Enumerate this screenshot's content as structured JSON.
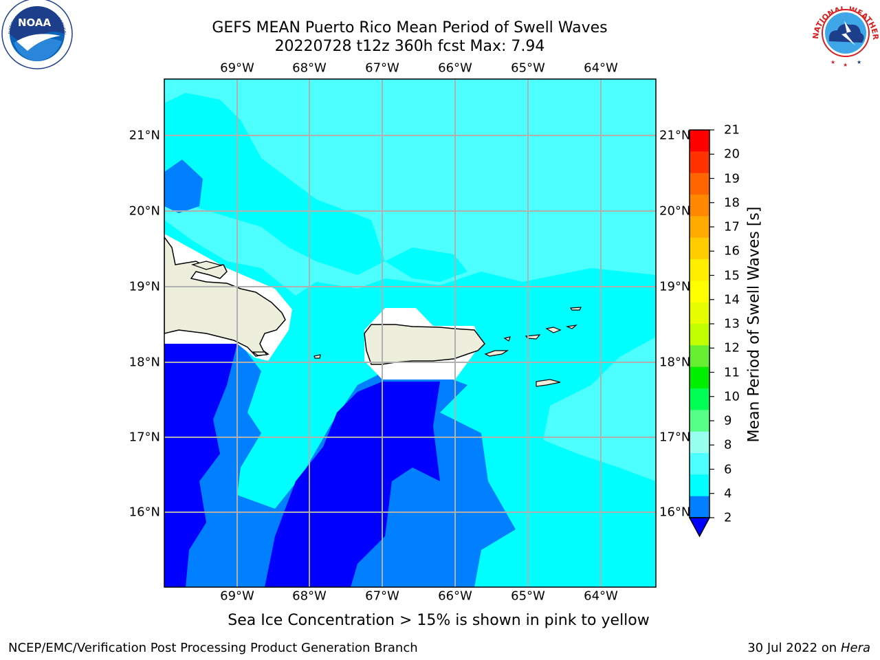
{
  "header": {
    "title_line1": "GEFS MEAN Puerto Rico Mean Period of Swell Waves",
    "title_line2": "20220728 t12z 360h fcst   Max: 7.94"
  },
  "logos": {
    "left": {
      "name": "NOAA",
      "ring_text": "NATIONAL OCEANIC AND ATMOSPHERIC ADMINISTRATION · U.S. DEPARTMENT OF COMMERCE"
    },
    "right": {
      "ring_text": "NATIONAL WEATHER SERVICE"
    }
  },
  "map": {
    "lon_labels": [
      "69°W",
      "68°W",
      "67°W",
      "66°W",
      "65°W",
      "64°W"
    ],
    "lat_labels": [
      "21°N",
      "20°N",
      "19°N",
      "18°N",
      "17°N",
      "16°N"
    ],
    "colors": {
      "below_2": "#0000ff",
      "band_2_4": "#0080ff",
      "band_4_6": "#00ffff",
      "band_6_8": "#4dffff",
      "land": "#eeeedd",
      "masked": "#ffffff",
      "grid": "#b0b0b0"
    }
  },
  "colorbar": {
    "label": "Mean Period of Swell Waves [s]",
    "ticks": [
      "21",
      "20",
      "19",
      "18",
      "17",
      "16",
      "15",
      "14",
      "13",
      "12",
      "11",
      "10",
      "9",
      "8",
      "6",
      "4",
      "2"
    ],
    "colors": [
      "#ff0000",
      "#ff3300",
      "#ff6600",
      "#ff8800",
      "#ffaa00",
      "#ffcc00",
      "#ffee00",
      "#ffff00",
      "#e6ff00",
      "#bfff00",
      "#66ee33",
      "#00ee00",
      "#00ff55",
      "#55ff88",
      "#99ffee",
      "#4dffff",
      "#00ffff",
      "#0080ff"
    ],
    "extend_color": "#0000ff"
  },
  "notes": {
    "sea_ice": "Sea Ice Concentration > 15% is shown in pink to yellow"
  },
  "footer": {
    "left": "NCEP/EMC/Verification Post Processing Product Generation Branch",
    "date": "30 Jul 2022 on ",
    "machine": "Hera"
  }
}
